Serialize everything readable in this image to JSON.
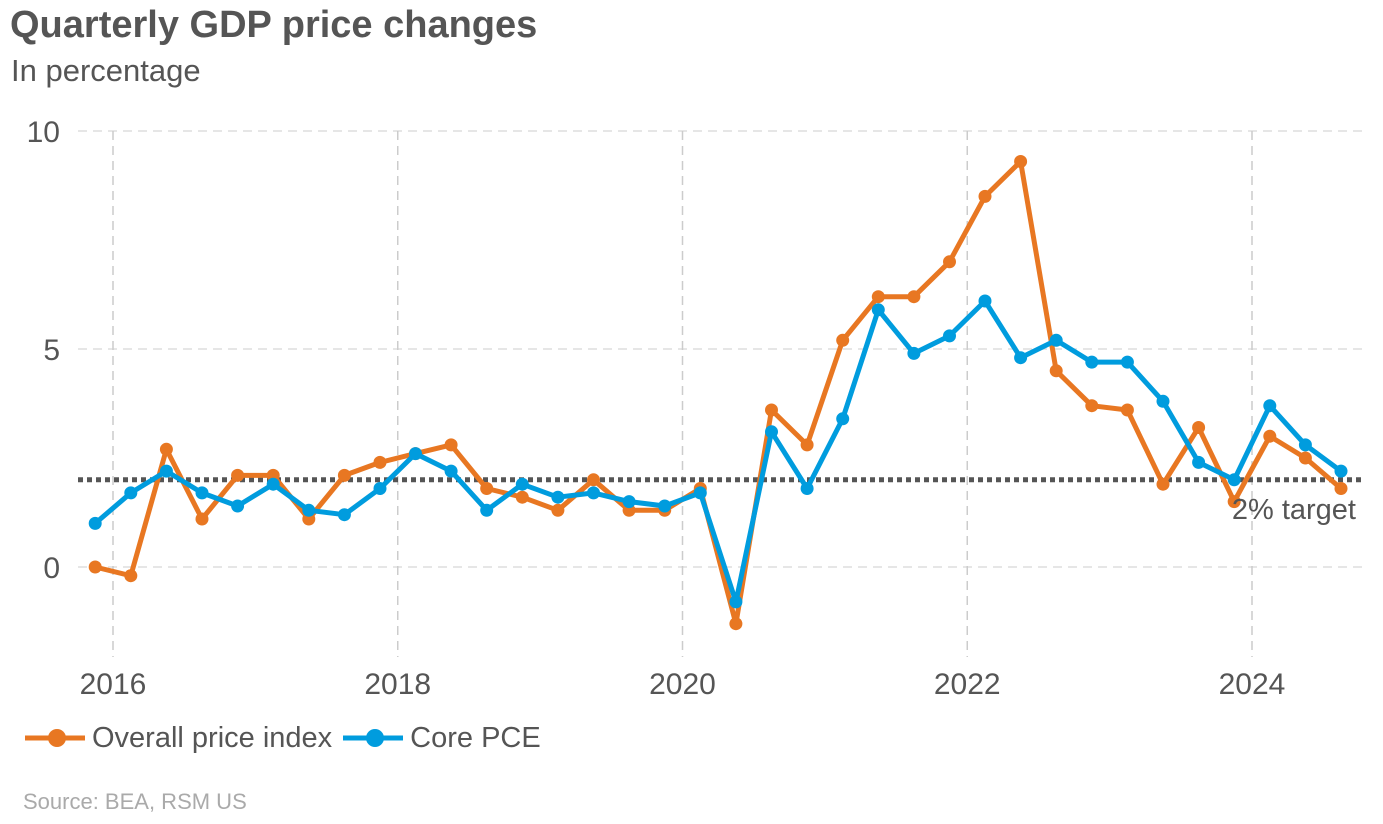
{
  "header": {
    "title": "Quarterly GDP price changes",
    "subtitle": "In percentage"
  },
  "footer": {
    "source": "Source: BEA, RSM US"
  },
  "chart_data": {
    "type": "line",
    "title": "Quarterly GDP price changes",
    "subtitle": "In percentage",
    "xlabel": "",
    "ylabel": "",
    "xlim": [
      2015.97,
      2024.84
    ],
    "ylim": [
      -2,
      10
    ],
    "x_ticks": [
      2016,
      2018,
      2020,
      2022,
      2024
    ],
    "y_ticks": [
      0,
      5,
      10
    ],
    "grid": true,
    "legend_position": "bottom-left",
    "reference_line": {
      "value": 2,
      "label": "2% target",
      "color": "#555555"
    },
    "x": [
      2015.875,
      2016.125,
      2016.375,
      2016.625,
      2016.875,
      2017.125,
      2017.375,
      2017.625,
      2017.875,
      2018.125,
      2018.375,
      2018.625,
      2018.875,
      2019.125,
      2019.375,
      2019.625,
      2019.875,
      2020.125,
      2020.375,
      2020.625,
      2020.875,
      2021.125,
      2021.375,
      2021.625,
      2021.875,
      2022.125,
      2022.375,
      2022.625,
      2022.875,
      2023.125,
      2023.375,
      2023.625,
      2023.875,
      2024.125,
      2024.375,
      2024.625
    ],
    "series": [
      {
        "name": "Overall price index",
        "color": "#E87722",
        "values": [
          0.0,
          -0.2,
          2.7,
          1.1,
          2.1,
          2.1,
          1.1,
          2.1,
          2.4,
          2.6,
          2.8,
          1.8,
          1.6,
          1.3,
          2.0,
          1.3,
          1.3,
          1.8,
          -1.3,
          3.6,
          2.8,
          5.2,
          6.2,
          6.2,
          7.0,
          8.5,
          9.3,
          4.5,
          3.7,
          3.6,
          1.9,
          3.2,
          1.5,
          3.0,
          2.5,
          1.8
        ]
      },
      {
        "name": "Core PCE",
        "color": "#009CDE",
        "values": [
          1.0,
          1.7,
          2.2,
          1.7,
          1.4,
          1.9,
          1.3,
          1.2,
          1.8,
          2.6,
          2.2,
          1.3,
          1.9,
          1.6,
          1.7,
          1.5,
          1.4,
          1.7,
          -0.8,
          3.1,
          1.8,
          3.4,
          5.9,
          4.9,
          5.3,
          6.1,
          4.8,
          5.2,
          4.7,
          4.7,
          3.8,
          2.4,
          2.0,
          3.7,
          2.8,
          2.2
        ]
      }
    ]
  }
}
